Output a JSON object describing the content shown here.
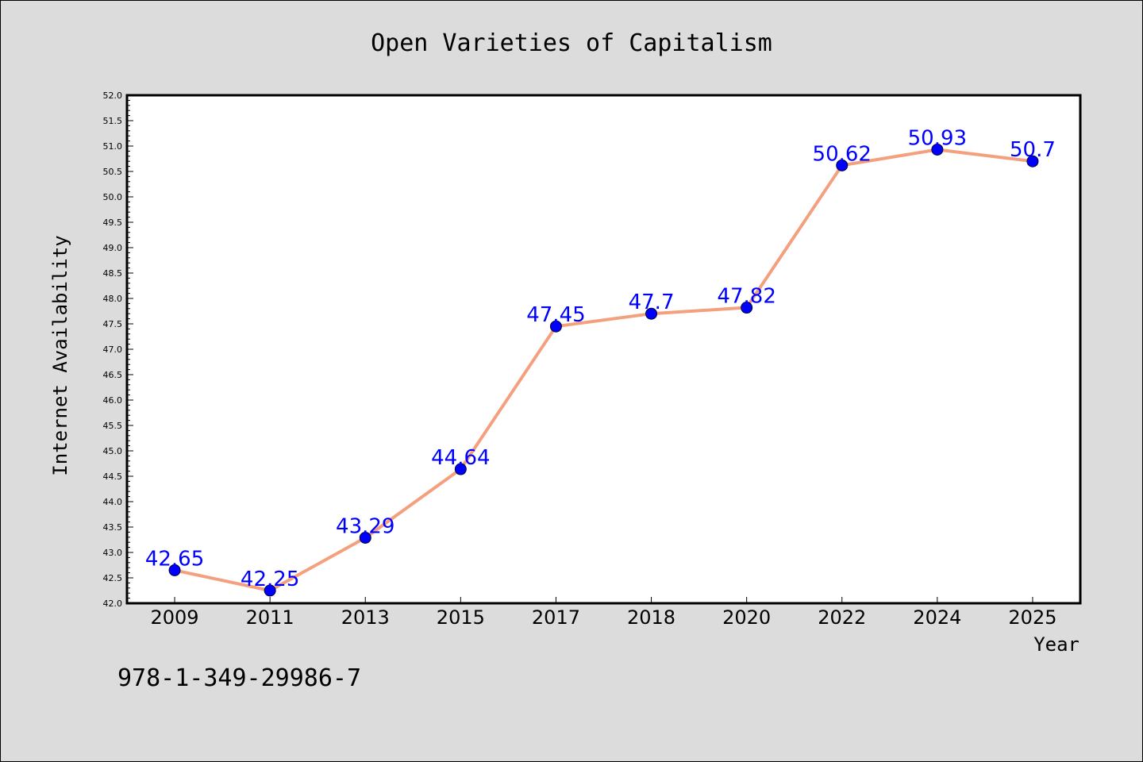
{
  "chart_data": {
    "type": "line",
    "title": "Open Varieties of Capitalism",
    "xlabel": "Year",
    "ylabel": "Internet Availability",
    "categories": [
      "2009",
      "2011",
      "2013",
      "2015",
      "2017",
      "2018",
      "2020",
      "2022",
      "2024",
      "2025"
    ],
    "values": [
      42.65,
      42.25,
      43.29,
      44.64,
      47.45,
      47.7,
      47.82,
      50.62,
      50.93,
      50.7
    ],
    "data_labels": [
      "42.65",
      "42.25",
      "43.29",
      "44.64",
      "47.45",
      "47.7",
      "47.82",
      "50.62",
      "50.93",
      "50.7"
    ],
    "ylim": [
      42.0,
      52.0
    ],
    "yticks": [
      "42.0",
      "42.5",
      "43.0",
      "43.5",
      "44.0",
      "44.5",
      "45.0",
      "45.5",
      "46.0",
      "46.5",
      "47.0",
      "47.5",
      "48.0",
      "48.5",
      "49.0",
      "49.5",
      "50.0",
      "50.5",
      "51.0",
      "51.5",
      "52.0"
    ],
    "grid": false,
    "legend": "none",
    "colors": {
      "line": "#f4a07f",
      "marker": "#0000ff",
      "data_label": "#0000ff",
      "background": "#dcdcdc",
      "plot_area": "#ffffff"
    }
  },
  "footer_text": "978-1-349-29986-7"
}
